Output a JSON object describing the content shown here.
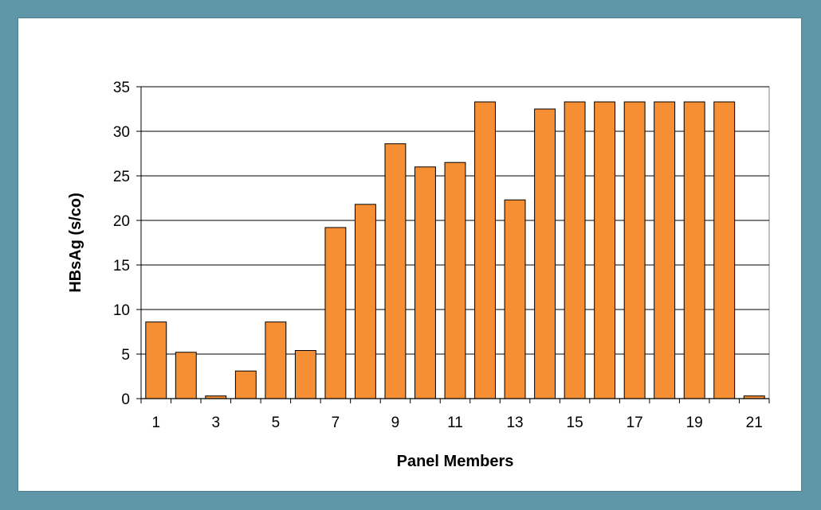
{
  "chart_data": {
    "type": "bar",
    "title": "",
    "xlabel": "Panel Members",
    "ylabel": "HBsAg (s/co)",
    "categories": [
      "1",
      "2",
      "3",
      "4",
      "5",
      "6",
      "7",
      "8",
      "9",
      "10",
      "11",
      "12",
      "13",
      "14",
      "15",
      "16",
      "17",
      "18",
      "19",
      "20",
      "21"
    ],
    "x_tick_labels": [
      "1",
      "3",
      "5",
      "7",
      "9",
      "11",
      "13",
      "15",
      "17",
      "19",
      "21"
    ],
    "y_ticks": [
      0,
      5,
      10,
      15,
      20,
      25,
      30,
      35
    ],
    "values": [
      8.6,
      5.2,
      0.3,
      3.1,
      8.6,
      5.4,
      19.2,
      21.8,
      28.6,
      26.0,
      26.5,
      33.3,
      22.3,
      32.5,
      33.3,
      33.3,
      33.3,
      33.3,
      33.3,
      33.3,
      0.3
    ],
    "ylim": [
      0,
      35
    ],
    "grid": "horizontal",
    "legend": "none",
    "bar_color": "#f68e33",
    "bar_edge_color": "#000000",
    "background_color": "#6097a8"
  }
}
